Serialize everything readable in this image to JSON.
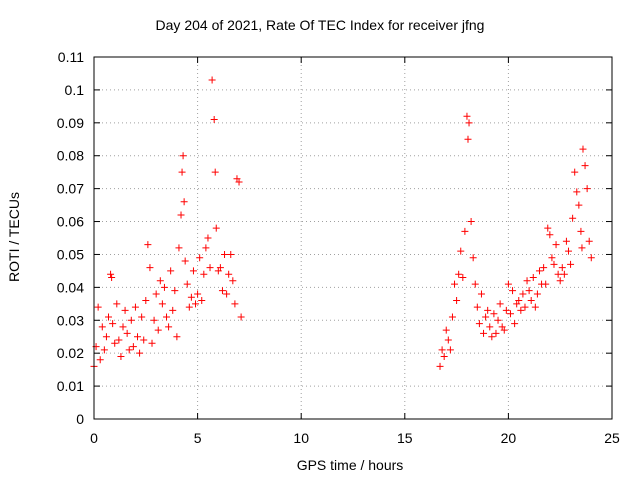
{
  "chart_data": {
    "type": "scatter",
    "title": "Day 204 of 2021, Rate Of TEC Index for receiver jfng",
    "xlabel": "GPS time / hours",
    "ylabel": "ROTI / TECUs",
    "xlim": [
      0,
      25
    ],
    "ylim": [
      0,
      0.11
    ],
    "xticks": [
      0,
      5,
      10,
      15,
      20,
      25
    ],
    "yticks": [
      0,
      0.01,
      0.02,
      0.03,
      0.04,
      0.05,
      0.06,
      0.07,
      0.08,
      0.09,
      0.1,
      0.11
    ],
    "grid": true,
    "marker": "+",
    "series": [
      {
        "name": "ROTI",
        "color": "#ff0000",
        "x": [
          0.0,
          0.1,
          0.2,
          0.3,
          0.4,
          0.5,
          0.6,
          0.7,
          0.8,
          0.85,
          0.9,
          1.0,
          1.1,
          1.2,
          1.3,
          1.4,
          1.5,
          1.6,
          1.7,
          1.8,
          1.9,
          2.0,
          2.1,
          2.2,
          2.3,
          2.4,
          2.5,
          2.6,
          2.7,
          2.8,
          2.9,
          3.0,
          3.1,
          3.2,
          3.3,
          3.4,
          3.5,
          3.6,
          3.7,
          3.8,
          3.9,
          4.0,
          4.1,
          4.2,
          4.25,
          4.3,
          4.35,
          4.4,
          4.5,
          4.6,
          4.7,
          4.8,
          4.9,
          5.0,
          5.1,
          5.2,
          5.3,
          5.4,
          5.5,
          5.6,
          5.7,
          5.8,
          5.85,
          5.9,
          6.0,
          6.1,
          6.2,
          6.3,
          6.4,
          6.5,
          6.6,
          6.7,
          6.8,
          6.9,
          7.0,
          7.1,
          16.7,
          16.8,
          16.9,
          17.0,
          17.1,
          17.2,
          17.3,
          17.4,
          17.5,
          17.6,
          17.7,
          17.8,
          17.9,
          18.0,
          18.05,
          18.1,
          18.2,
          18.3,
          18.4,
          18.5,
          18.6,
          18.7,
          18.8,
          18.9,
          19.0,
          19.1,
          19.2,
          19.3,
          19.4,
          19.5,
          19.6,
          19.7,
          19.8,
          19.9,
          20.0,
          20.1,
          20.2,
          20.3,
          20.4,
          20.5,
          20.6,
          20.7,
          20.8,
          20.9,
          21.0,
          21.1,
          21.2,
          21.3,
          21.4,
          21.5,
          21.6,
          21.7,
          21.8,
          21.9,
          22.0,
          22.1,
          22.2,
          22.3,
          22.4,
          22.5,
          22.6,
          22.7,
          22.8,
          22.9,
          23.0,
          23.1,
          23.2,
          23.3,
          23.4,
          23.5,
          23.55,
          23.6,
          23.7,
          23.8,
          23.9,
          24.0
        ],
        "y": [
          0.016,
          0.022,
          0.034,
          0.018,
          0.028,
          0.021,
          0.025,
          0.031,
          0.044,
          0.043,
          0.029,
          0.023,
          0.035,
          0.024,
          0.019,
          0.028,
          0.033,
          0.026,
          0.021,
          0.03,
          0.022,
          0.034,
          0.025,
          0.02,
          0.031,
          0.024,
          0.036,
          0.053,
          0.046,
          0.023,
          0.03,
          0.038,
          0.027,
          0.042,
          0.035,
          0.04,
          0.031,
          0.028,
          0.045,
          0.033,
          0.039,
          0.025,
          0.052,
          0.062,
          0.075,
          0.08,
          0.066,
          0.048,
          0.041,
          0.034,
          0.037,
          0.045,
          0.035,
          0.038,
          0.049,
          0.036,
          0.044,
          0.052,
          0.055,
          0.046,
          0.103,
          0.091,
          0.075,
          0.058,
          0.045,
          0.046,
          0.039,
          0.05,
          0.038,
          0.044,
          0.05,
          0.042,
          0.035,
          0.073,
          0.072,
          0.031,
          0.016,
          0.021,
          0.019,
          0.027,
          0.024,
          0.021,
          0.031,
          0.041,
          0.036,
          0.044,
          0.051,
          0.043,
          0.057,
          0.092,
          0.085,
          0.09,
          0.06,
          0.049,
          0.041,
          0.034,
          0.029,
          0.038,
          0.026,
          0.031,
          0.033,
          0.028,
          0.025,
          0.032,
          0.026,
          0.03,
          0.035,
          0.028,
          0.027,
          0.033,
          0.041,
          0.032,
          0.039,
          0.029,
          0.035,
          0.036,
          0.033,
          0.038,
          0.034,
          0.042,
          0.039,
          0.036,
          0.043,
          0.034,
          0.038,
          0.045,
          0.041,
          0.046,
          0.041,
          0.058,
          0.056,
          0.049,
          0.047,
          0.053,
          0.044,
          0.042,
          0.046,
          0.044,
          0.054,
          0.051,
          0.047,
          0.061,
          0.075,
          0.069,
          0.065,
          0.057,
          0.052,
          0.082,
          0.077,
          0.07,
          0.054,
          0.049
        ]
      }
    ]
  }
}
